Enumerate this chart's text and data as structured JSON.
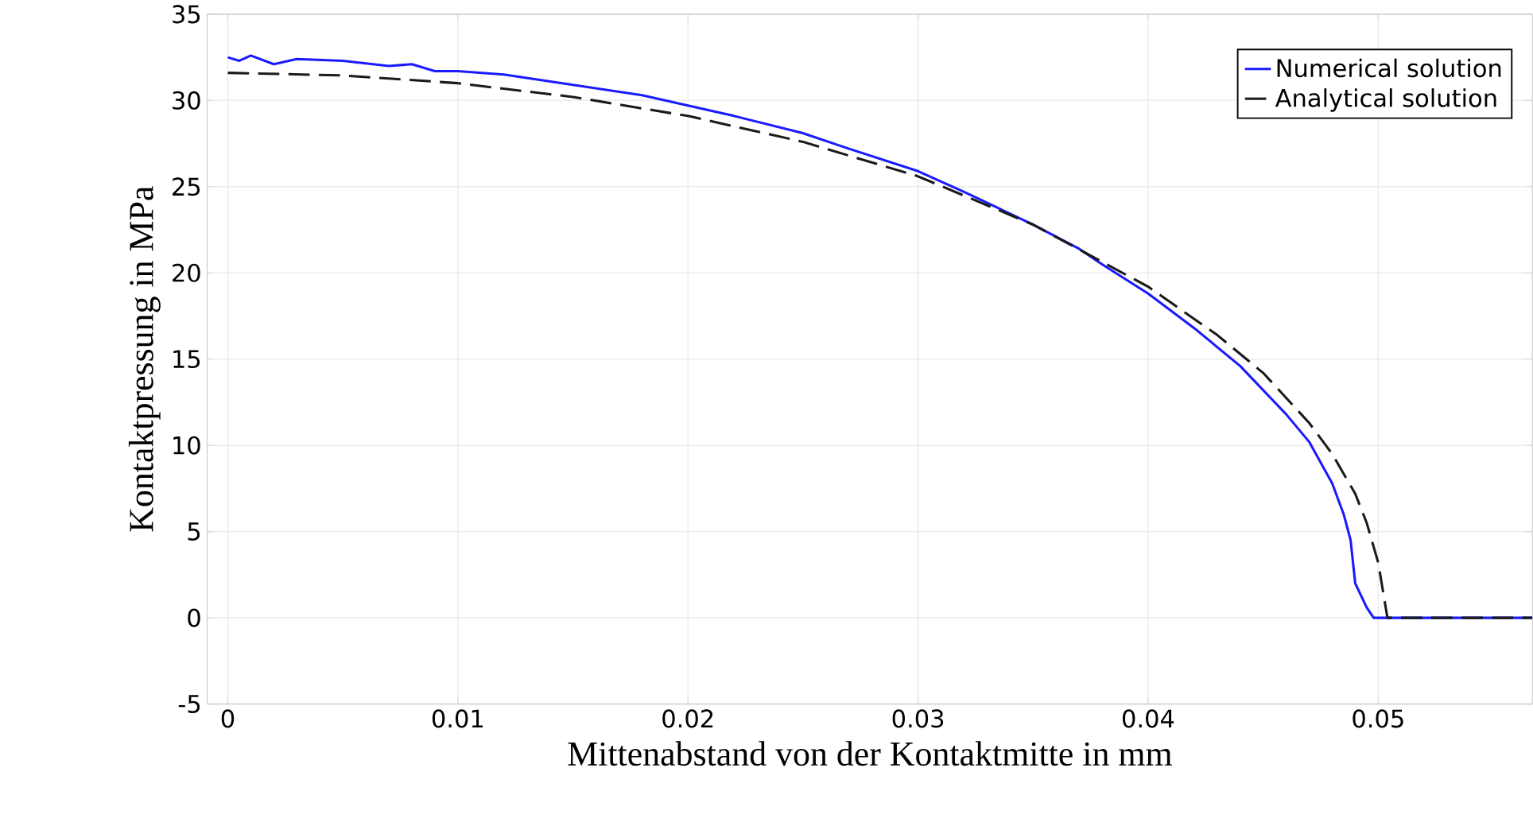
{
  "chart_data": {
    "type": "line",
    "xlabel": "Mittenabstand von der Kontaktmitte in mm",
    "ylabel": "Kontaktpressung in MPa",
    "xlim": [
      -0.0009,
      0.0567
    ],
    "ylim": [
      -5,
      35
    ],
    "xticks": [
      0,
      0.01,
      0.02,
      0.03,
      0.04,
      0.05
    ],
    "yticks": [
      -5,
      0,
      5,
      10,
      15,
      20,
      25,
      30,
      35
    ],
    "grid": true,
    "legend": "top right",
    "series": [
      {
        "name": "Numerical solution",
        "color": "#1a1aff",
        "line_style": "solid",
        "x": [
          0,
          0.0005,
          0.001,
          0.002,
          0.003,
          0.005,
          0.007,
          0.008,
          0.009,
          0.01,
          0.012,
          0.015,
          0.018,
          0.02,
          0.022,
          0.025,
          0.027,
          0.03,
          0.032,
          0.035,
          0.037,
          0.038,
          0.04,
          0.042,
          0.044,
          0.046,
          0.047,
          0.048,
          0.0485,
          0.0488,
          0.049,
          0.0495,
          0.0498,
          0.0567
        ],
        "values": [
          32.5,
          32.3,
          32.6,
          32.1,
          32.4,
          32.3,
          32.0,
          32.1,
          31.7,
          31.7,
          31.5,
          30.9,
          30.3,
          29.7,
          29.1,
          28.1,
          27.2,
          25.9,
          24.7,
          22.8,
          21.4,
          20.5,
          18.8,
          16.8,
          14.6,
          11.8,
          10.2,
          7.8,
          6.0,
          4.5,
          2.0,
          0.6,
          0,
          0
        ]
      },
      {
        "name": "Analytical solution",
        "color": "#1a1a1a",
        "line_style": "dashed",
        "x": [
          0,
          0.005,
          0.01,
          0.015,
          0.02,
          0.025,
          0.03,
          0.035,
          0.04,
          0.043,
          0.045,
          0.047,
          0.048,
          0.049,
          0.0495,
          0.05,
          0.0504,
          0.0567
        ],
        "values": [
          31.6,
          31.45,
          31.0,
          30.2,
          29.1,
          27.6,
          25.6,
          22.8,
          19.2,
          16.4,
          14.2,
          11.3,
          9.5,
          7.2,
          5.5,
          3.2,
          0,
          0
        ]
      }
    ]
  }
}
